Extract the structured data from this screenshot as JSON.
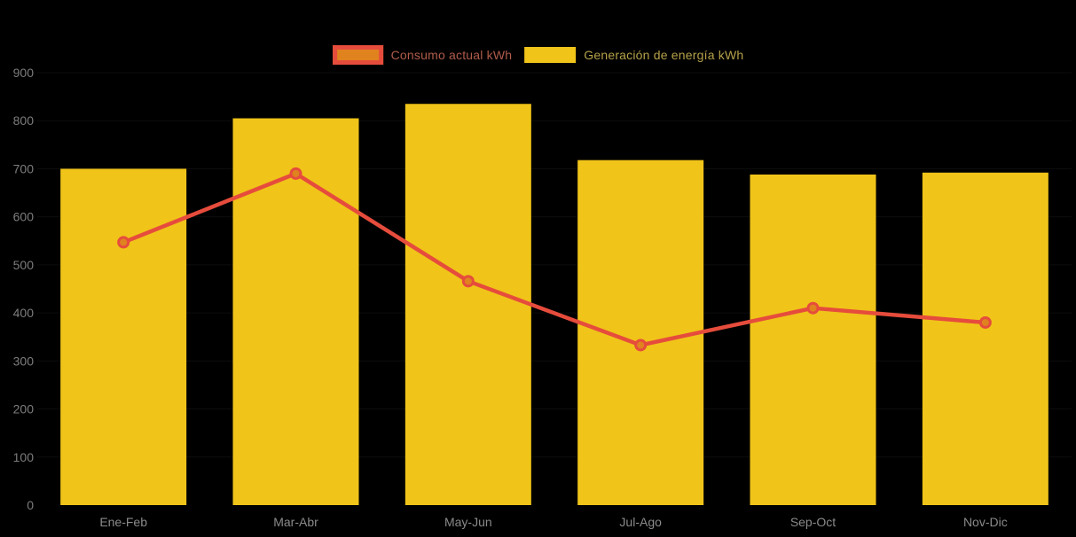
{
  "chart_data": {
    "type": "combo",
    "title": "",
    "categories": [
      "Ene-Feb",
      "Mar-Abr",
      "May-Jun",
      "Jul-Ago",
      "Sep-Oct",
      "Nov-Dic"
    ],
    "series": [
      {
        "name": "Consumo actual kWh",
        "type": "line",
        "color": "#E64C3C",
        "marker_fill": "#E0831F",
        "values": [
          547,
          690,
          466,
          333,
          410,
          380
        ]
      },
      {
        "name": "Generación de energía kWh",
        "type": "bar",
        "color": "#F0C419",
        "values": [
          700,
          805,
          835,
          718,
          688,
          692
        ]
      }
    ],
    "xlabel": "",
    "ylabel": "",
    "ylim": [
      0,
      900
    ],
    "yticks": [
      0,
      100,
      200,
      300,
      400,
      500,
      600,
      700,
      800,
      900
    ],
    "legend_position": "top-center",
    "grid": "faint-horizontal",
    "background_color": "#000000",
    "axis_label_color": "#7d7d7d"
  }
}
